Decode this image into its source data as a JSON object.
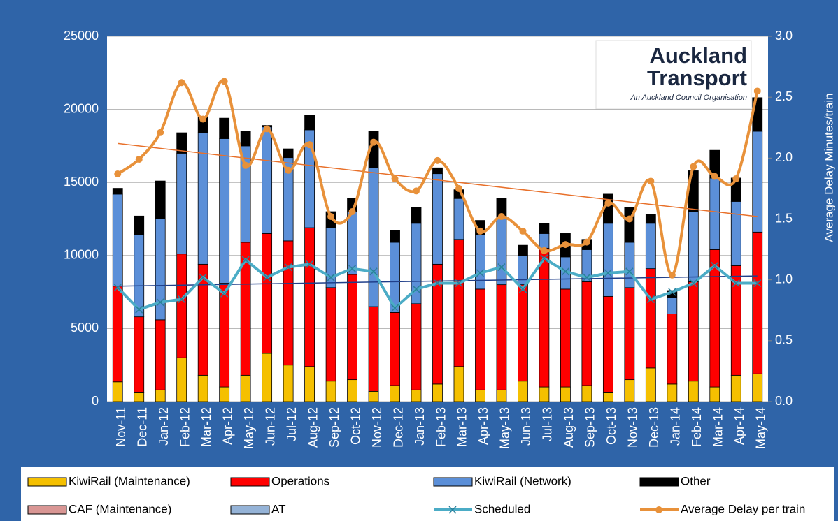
{
  "chart_data": {
    "type": "bar",
    "categories": [
      "Nov-11",
      "Dec-11",
      "Jan-12",
      "Feb-12",
      "Mar-12",
      "Apr-12",
      "May-12",
      "Jun-12",
      "Jul-12",
      "Aug-12",
      "Sep-12",
      "Oct-12",
      "Nov-12",
      "Dec-12",
      "Jan-13",
      "Feb-13",
      "Mar-13",
      "Apr-13",
      "May-13",
      "Jun-13",
      "Jul-13",
      "Aug-13",
      "Sep-13",
      "Oct-13",
      "Nov-13",
      "Dec-13",
      "Jan-14",
      "Feb-14",
      "Mar-14",
      "Apr-14",
      "May-14"
    ],
    "y2_label": "Average Delay Minutes/train",
    "ylim": [
      0,
      25000
    ],
    "yticks": [
      0,
      5000,
      10000,
      15000,
      20000,
      25000
    ],
    "y2lim": [
      0,
      3
    ],
    "y2ticks": [
      {
        "value": 0,
        "label": "0.0"
      },
      {
        "value": 0.5,
        "label": "0.5"
      },
      {
        "value": 1,
        "label": "1.0"
      },
      {
        "value": 1.5,
        "label": "1.5"
      },
      {
        "value": 2,
        "label": "2.0"
      },
      {
        "value": 2.5,
        "label": "2.5"
      },
      {
        "value": 3,
        "label": "3.0"
      }
    ],
    "grid": true,
    "series": [
      {
        "name": "KiwiRail (Maintenance)",
        "kind": "bar",
        "color": "#f5c000",
        "values": [
          1350,
          600,
          800,
          3000,
          1800,
          1000,
          1800,
          3300,
          2500,
          2400,
          1400,
          1500,
          700,
          1100,
          800,
          1200,
          2400,
          800,
          800,
          1400,
          1000,
          1000,
          1100,
          600,
          1500,
          2300,
          1200,
          1400,
          1000,
          1800,
          1900
        ]
      },
      {
        "name": "Operations",
        "kind": "bar",
        "color": "#ff0000",
        "values": [
          6550,
          5200,
          4800,
          7100,
          7600,
          7100,
          9100,
          8200,
          8500,
          9500,
          6400,
          7200,
          5800,
          5000,
          5900,
          8200,
          8700,
          6900,
          7200,
          6600,
          9500,
          6700,
          7100,
          6600,
          6300,
          6800,
          4800,
          6800,
          9400,
          7500,
          9700
        ]
      },
      {
        "name": "KiwiRail (Network)",
        "kind": "bar",
        "color": "#5b8fd8",
        "values": [
          6300,
          5600,
          6900,
          6900,
          9000,
          9900,
          6600,
          7300,
          5700,
          6700,
          4100,
          4300,
          9500,
          4800,
          5500,
          6200,
          2800,
          3700,
          4600,
          2000,
          1000,
          2200,
          2200,
          5000,
          3100,
          3100,
          1100,
          4800,
          4900,
          4400,
          6900
        ]
      },
      {
        "name": "Other",
        "kind": "bar",
        "color": "#000000",
        "values": [
          400,
          1300,
          2600,
          1400,
          1100,
          1400,
          1000,
          100,
          600,
          1000,
          1100,
          900,
          2500,
          800,
          1100,
          400,
          600,
          1000,
          1300,
          700,
          700,
          1600,
          700,
          2000,
          2400,
          600,
          500,
          2800,
          1900,
          1600,
          2300
        ]
      },
      {
        "name": "CAF (Maintenance)",
        "kind": "bar",
        "color": "#d99694",
        "values": [
          0,
          0,
          0,
          0,
          0,
          0,
          0,
          0,
          0,
          0,
          0,
          0,
          0,
          0,
          0,
          0,
          0,
          0,
          0,
          0,
          0,
          0,
          0,
          0,
          0,
          0,
          0,
          0,
          0,
          0,
          0
        ]
      },
      {
        "name": "AT",
        "kind": "bar",
        "color": "#95b3d7",
        "values": [
          0,
          0,
          0,
          0,
          0,
          0,
          0,
          0,
          0,
          0,
          0,
          0,
          0,
          0,
          0,
          0,
          0,
          0,
          0,
          0,
          0,
          0,
          0,
          0,
          0,
          0,
          0,
          0,
          0,
          0,
          0
        ]
      },
      {
        "name": "Scheduled",
        "kind": "line",
        "marker": "x",
        "color": "#4bacc6",
        "values": [
          7800,
          6300,
          6800,
          7000,
          8500,
          7400,
          9700,
          8500,
          9200,
          9400,
          8500,
          9100,
          8900,
          6400,
          7700,
          8100,
          8100,
          8800,
          9200,
          7700,
          9800,
          8900,
          8500,
          8800,
          8900,
          7000,
          7500,
          8100,
          9300,
          8100,
          8100
        ]
      },
      {
        "name": "Average Delay per train",
        "kind": "line",
        "marker": "circle",
        "axis": "y2",
        "color": "#e8913a",
        "values": [
          1.87,
          1.99,
          2.21,
          2.62,
          2.32,
          2.63,
          1.94,
          2.24,
          1.9,
          2.11,
          1.52,
          1.56,
          2.13,
          1.83,
          1.73,
          1.98,
          1.75,
          1.4,
          1.52,
          1.4,
          1.24,
          1.29,
          1.31,
          1.63,
          1.5,
          1.81,
          1.04,
          1.93,
          1.85,
          1.83,
          2.55
        ]
      }
    ],
    "trendlines": [
      {
        "axis": "y2",
        "color": "#e8702a",
        "values": [
          2.12,
          1.52
        ]
      },
      {
        "axis": "y",
        "color": "#1f3f8a",
        "values": [
          7900,
          8600
        ]
      }
    ],
    "logo": {
      "title_line1": "Auckland",
      "title_line2": "Transport",
      "subtitle": "An Auckland Council Organisation"
    }
  }
}
